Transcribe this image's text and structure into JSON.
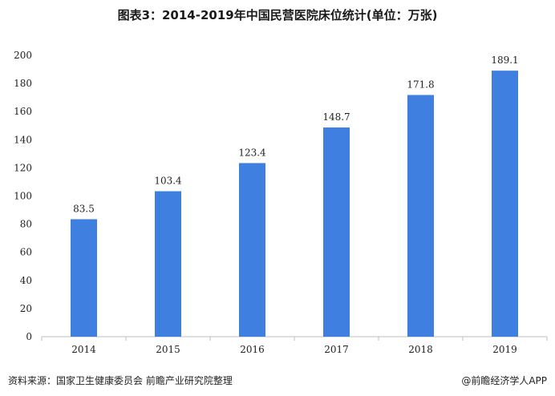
{
  "chart_data": {
    "type": "bar",
    "title": "图表3：2014-2019年中国民营医院床位统计(单位：万张)",
    "categories": [
      "2014",
      "2015",
      "2016",
      "2017",
      "2018",
      "2019"
    ],
    "values": [
      83.5,
      103.4,
      123.4,
      148.7,
      171.8,
      189.1
    ],
    "data_labels": [
      "83.5",
      "103.4",
      "123.4",
      "148.7",
      "171.8",
      "189.1"
    ],
    "y_ticks": [
      0,
      20,
      40,
      60,
      80,
      100,
      120,
      140,
      160,
      180,
      200
    ],
    "ylim": [
      0,
      200
    ],
    "bar_color": "#3f7fe0",
    "grid": false,
    "legend": "none"
  },
  "footer": {
    "source": "资料来源：国家卫生健康委员会 前瞻产业研究院整理",
    "brand": "@前瞻经济学人APP"
  }
}
